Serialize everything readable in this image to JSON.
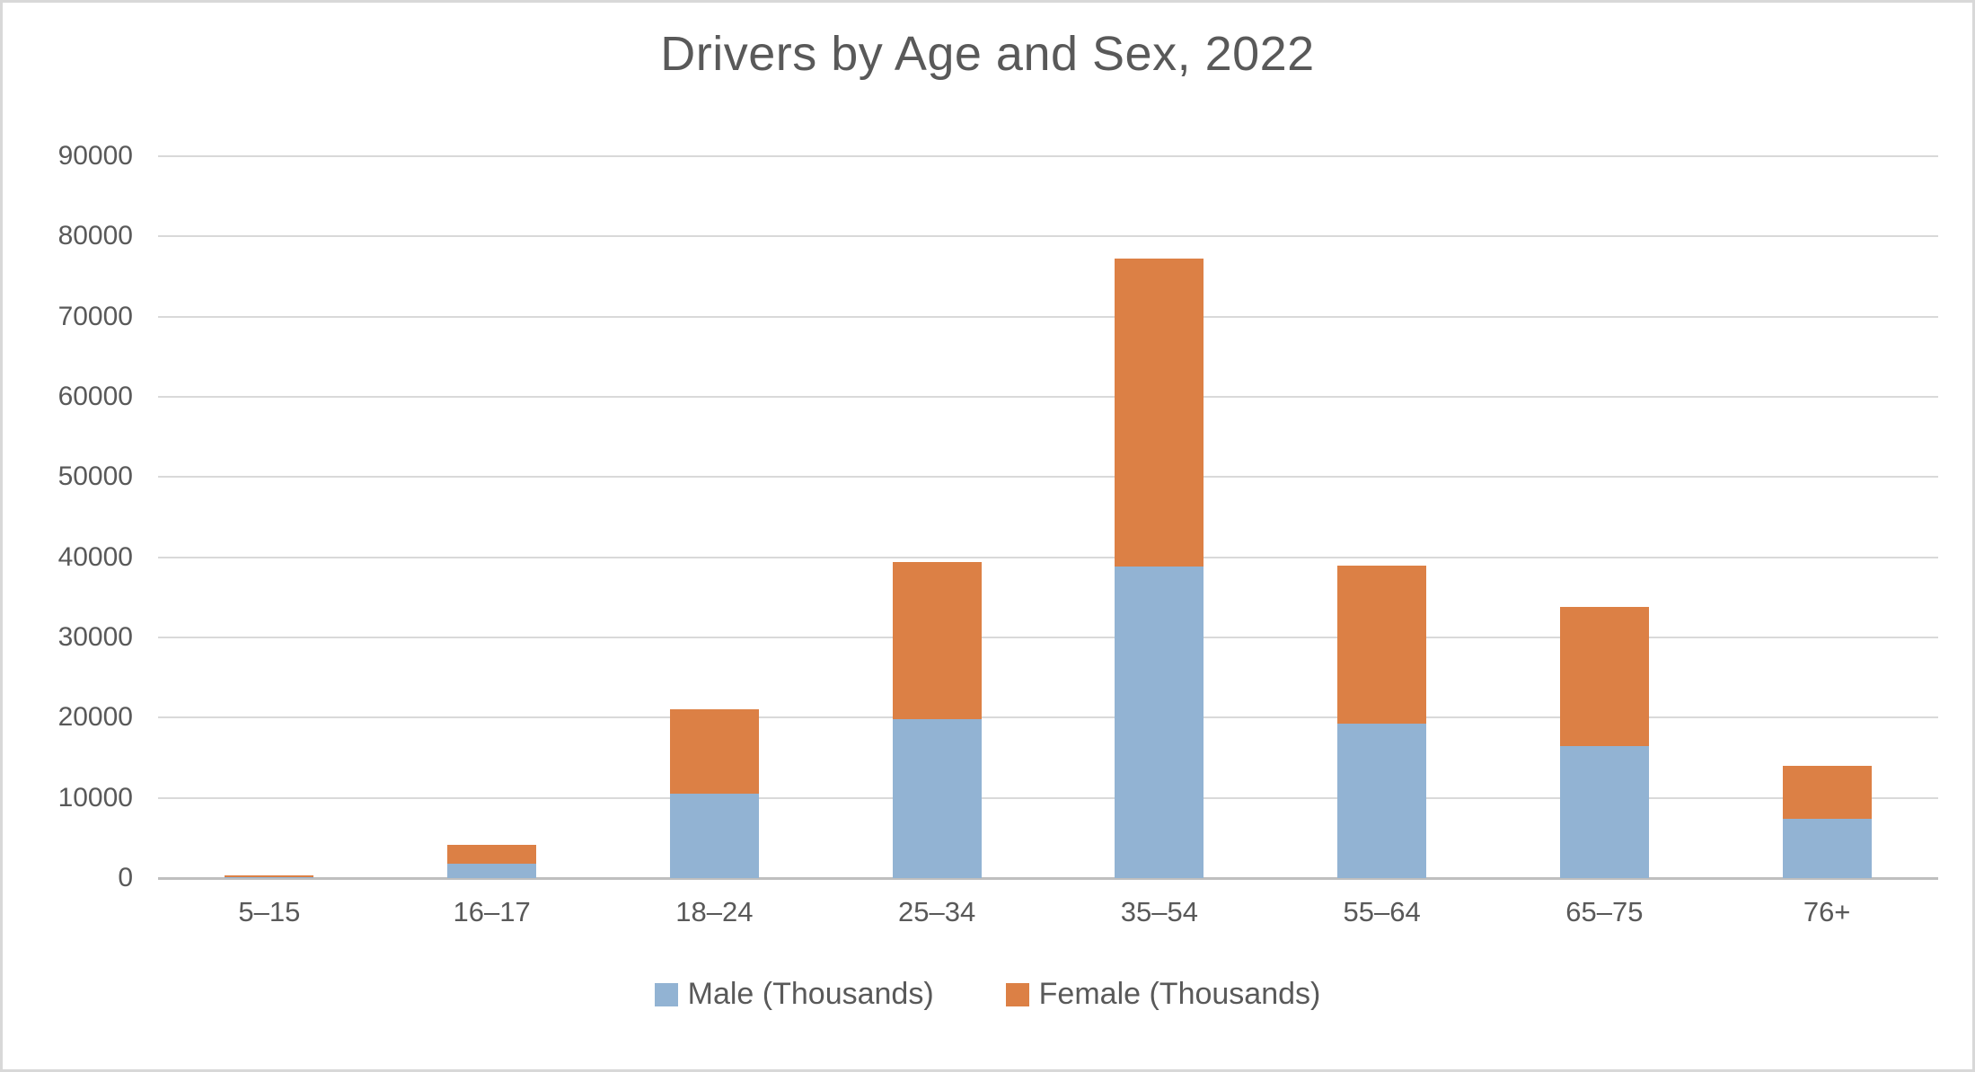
{
  "title": "Drivers by Age and Sex, 2022",
  "colors": {
    "male_series": "#92B3D3",
    "female_series": "#DC8045",
    "gridline": "#D9D9D9",
    "axis_line": "#BFBFBF",
    "text": "#595959",
    "frame_border": "#D8D8D8",
    "background": "#FFFFFF"
  },
  "chart_data": {
    "type": "bar",
    "stacked": true,
    "title": "Drivers by Age and Sex, 2022",
    "categories": [
      "5–15",
      "16–17",
      "18–24",
      "25–34",
      "35–54",
      "55–64",
      "65–75",
      "76+"
    ],
    "series": [
      {
        "name": "Male (Thousands)",
        "color": "#92B3D3",
        "values": [
          150,
          1800,
          10500,
          19800,
          38800,
          19300,
          16500,
          7400
        ]
      },
      {
        "name": "Female (Thousands)",
        "color": "#DC8045",
        "values": [
          150,
          2300,
          10600,
          19600,
          38400,
          19600,
          17300,
          6600
        ]
      }
    ],
    "stack_totals": [
      300,
      4100,
      21100,
      39400,
      77200,
      38900,
      33800,
      14000
    ],
    "xlabel": "",
    "ylabel": "",
    "ylim": [
      0,
      90000
    ],
    "yticks": [
      0,
      10000,
      20000,
      30000,
      40000,
      50000,
      60000,
      70000,
      80000,
      90000
    ],
    "ytick_labels": [
      "0",
      "10000",
      "20000",
      "30000",
      "40000",
      "50000",
      "60000",
      "70000",
      "80000",
      "90000"
    ],
    "grid": true,
    "legend_position": "bottom"
  }
}
